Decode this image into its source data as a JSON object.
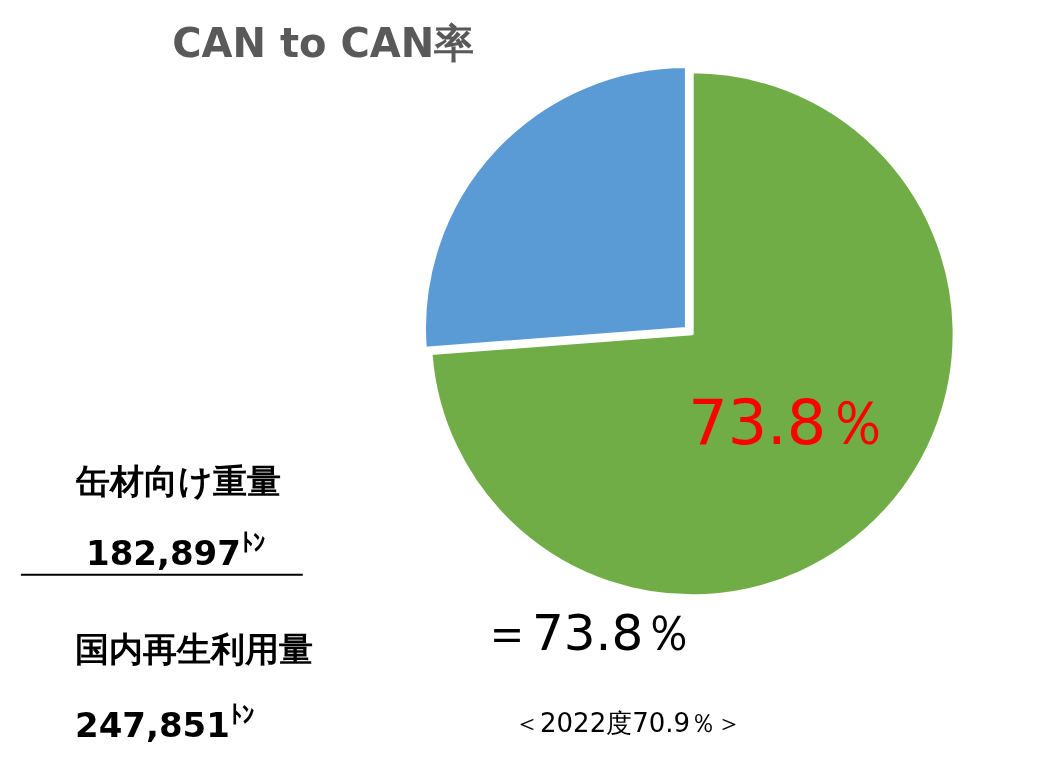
{
  "chart_data": {
    "type": "pie",
    "title": "CAN to CAN率",
    "categories": [
      null,
      null
    ],
    "values": [
      73.8,
      26.2
    ],
    "colors": [
      "#70ad47",
      "#5b9bd5"
    ],
    "value_labels": [
      "73.8％",
      null
    ],
    "annotations": [
      "缶材向け重量",
      "182,897$^{ﾄﾝ}$",
      "国内再生利用量",
      "247,851$^{ﾄﾝ}$",
      "＝73.8％",
      "＜2022度70.9％＞"
    ]
  }
}
